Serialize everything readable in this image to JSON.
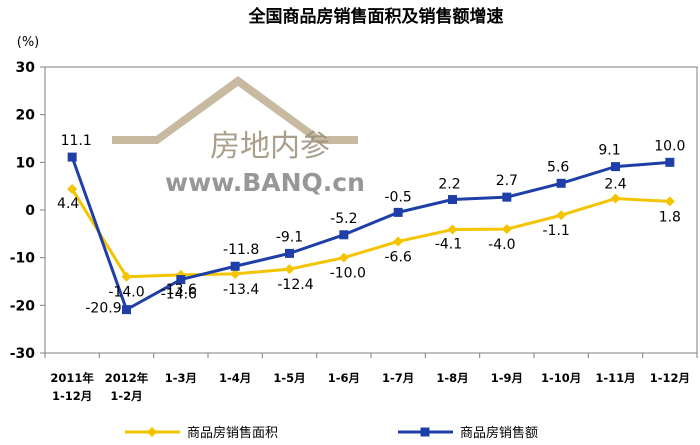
{
  "chart_data": {
    "type": "line",
    "title": "全国商品房销售面积及销售额增速",
    "ylabel": "(%)",
    "ylim": [
      -30,
      30
    ],
    "yticks": [
      -30,
      -20,
      -10,
      0,
      10,
      20,
      30
    ],
    "grid": false,
    "legend_position": "bottom",
    "categories": [
      "2011年 1-12月",
      "2012年 1-2月",
      "1-3月",
      "1-4月",
      "1-5月",
      "1-6月",
      "1-7月",
      "1-8月",
      "1-9月",
      "1-10月",
      "1-11月",
      "1-12月"
    ],
    "series": [
      {
        "name": "商品房销售面积",
        "color": "#f5c400",
        "marker": "diamond",
        "values": [
          4.4,
          -14.0,
          -13.6,
          -13.4,
          -12.4,
          -10.0,
          -6.6,
          -4.1,
          -4.0,
          -1.1,
          2.4,
          1.8
        ],
        "labels": [
          "4.4",
          "-14.0",
          "-13.6",
          "-13.4",
          "-12.4",
          "-10.0",
          "-6.6",
          "-4.1",
          "-4.0",
          "-1.1",
          "2.4",
          "1.8"
        ]
      },
      {
        "name": "商品房销售额",
        "color": "#1f3fa8",
        "marker": "square",
        "values": [
          11.1,
          -20.9,
          -14.6,
          -11.8,
          -9.1,
          -5.2,
          -0.5,
          2.2,
          2.7,
          5.6,
          9.1,
          10.0
        ],
        "labels": [
          "11.1",
          "-20.9",
          "-14.6",
          "-11.8",
          "-9.1",
          "-5.2",
          "-0.5",
          "2.2",
          "2.7",
          "5.6",
          "9.1",
          "10.0"
        ]
      }
    ]
  },
  "watermark": {
    "text": "房地内参",
    "url": "www.BANQ.cn"
  }
}
